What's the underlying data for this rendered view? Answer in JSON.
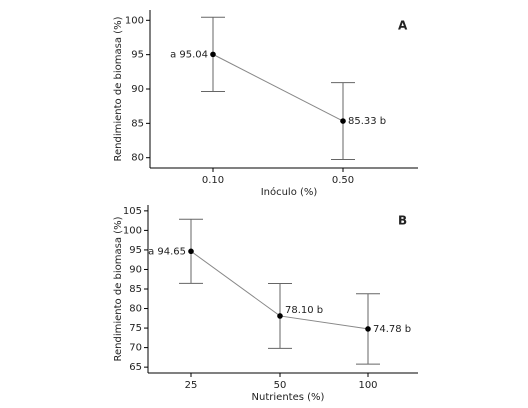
{
  "chart_data": [
    {
      "type": "line",
      "panel_label": "A",
      "ylabel": "Rendimiento de biomasa (%)",
      "xlabel": "Inóculo (%)",
      "categories": [
        "0.10",
        "0.50"
      ],
      "values": [
        95.04,
        85.33
      ],
      "errors": [
        5.4,
        5.6
      ],
      "value_labels": [
        "a 95.04",
        "85.33 b"
      ],
      "color": "#000000",
      "line_color": "#888888",
      "ylim": [
        78.5,
        101.5
      ],
      "yticks": [
        80,
        85,
        90,
        95,
        100
      ]
    },
    {
      "type": "line",
      "panel_label": "B",
      "ylabel": "Rendimiento de biomasa (%)",
      "xlabel": "Nutrientes (%)",
      "categories": [
        "25",
        "50",
        "100"
      ],
      "values": [
        94.65,
        78.1,
        74.78
      ],
      "errors": [
        8.2,
        8.3,
        9.0
      ],
      "value_labels": [
        "a 94.65",
        "78.10 b",
        "74.78 b"
      ],
      "color": "#000000",
      "line_color": "#888888",
      "ylim": [
        63.5,
        106.5
      ],
      "yticks": [
        65,
        70,
        75,
        80,
        85,
        90,
        95,
        100,
        105
      ]
    }
  ]
}
